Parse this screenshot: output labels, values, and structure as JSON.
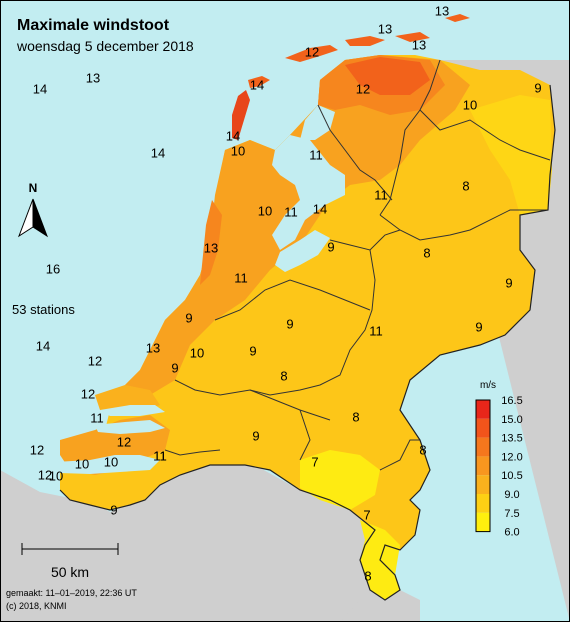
{
  "title": "Maximale windstoot",
  "subtitle": "woensdag 5 december 2018",
  "stations_label": "53 stations",
  "north_label": "N",
  "scale_label": "50 km",
  "footer": {
    "made": "gemaakt: 11–01–2019, 22:36 UT",
    "copyright": "(c) 2018, KNMI"
  },
  "legend": {
    "unit": "m/s",
    "ticks": [
      "16.5",
      "15.0",
      "13.5",
      "12.0",
      "10.5",
      "9.0",
      "7.5",
      "6.0"
    ],
    "colors": [
      "#e8261a",
      "#f2541b",
      "#f5771d",
      "#f8961f",
      "#fab11d",
      "#fdd014",
      "#ffef0e"
    ]
  },
  "colors": {
    "sea": "#c2edf1",
    "land_outside": "#cfcfcf",
    "water_inland": "#c2edf1"
  },
  "station_values": [
    "13",
    "13",
    "12",
    "13",
    "12",
    "14",
    "13",
    "14",
    "10",
    "9",
    "14",
    "14",
    "10",
    "11",
    "11",
    "10",
    "11",
    "14",
    "11",
    "8",
    "13",
    "9",
    "8",
    "9",
    "16",
    "11",
    "9",
    "9",
    "14",
    "12",
    "13",
    "10",
    "9",
    "9",
    "9",
    "8",
    "12",
    "11",
    "12",
    "12",
    "11",
    "10",
    "8",
    "9",
    "8",
    "7",
    "12",
    "10",
    "10",
    "11",
    "9",
    "7",
    "8"
  ]
}
